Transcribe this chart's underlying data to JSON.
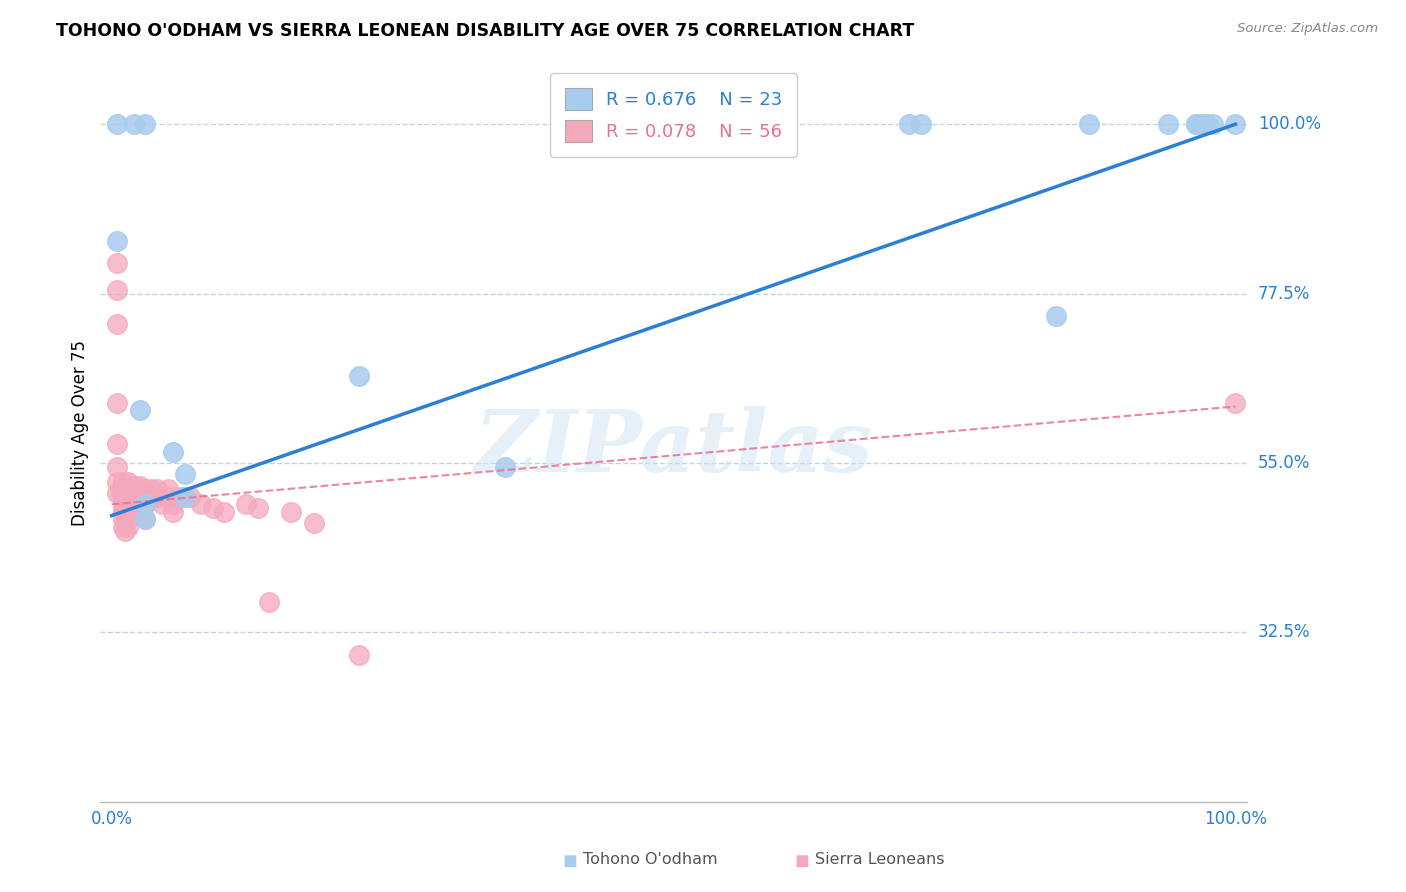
{
  "title": "TOHONO O'ODHAM VS SIERRA LEONEAN DISABILITY AGE OVER 75 CORRELATION CHART",
  "source": "Source: ZipAtlas.com",
  "ylabel": "Disability Age Over 75",
  "ytick_labels": [
    "100.0%",
    "77.5%",
    "55.0%",
    "32.5%"
  ],
  "ytick_values": [
    1.0,
    0.775,
    0.55,
    0.325
  ],
  "legend_blue_R": "R = 0.676",
  "legend_blue_N": "N = 23",
  "legend_pink_R": "R = 0.078",
  "legend_pink_N": "N = 56",
  "legend_blue_label": "Tohono O'odham",
  "legend_pink_label": "Sierra Leoneans",
  "blue_color": "#A8CCEE",
  "pink_color": "#F4A8BC",
  "trendline_blue_color": "#2B7FD4",
  "trendline_pink_color": "#E87090",
  "grid_color": "#C0D4E8",
  "background_color": "#FFFFFF",
  "watermark_text": "ZIPatlas",
  "blue_x": [
    0.005,
    0.02,
    0.03,
    0.005,
    0.025,
    0.055,
    0.065,
    0.065,
    0.03,
    0.03,
    0.22,
    0.35,
    0.71,
    0.72,
    0.84,
    0.87,
    0.94,
    0.965,
    0.965,
    0.97,
    0.975,
    0.98,
    1.0
  ],
  "blue_y": [
    1.0,
    1.0,
    1.0,
    0.845,
    0.62,
    0.565,
    0.535,
    0.505,
    0.495,
    0.475,
    0.665,
    0.545,
    1.0,
    1.0,
    0.745,
    1.0,
    1.0,
    1.0,
    1.0,
    1.0,
    1.0,
    1.0,
    1.0
  ],
  "pink_x": [
    0.005,
    0.005,
    0.005,
    0.005,
    0.005,
    0.005,
    0.005,
    0.005,
    0.008,
    0.01,
    0.01,
    0.01,
    0.01,
    0.01,
    0.01,
    0.01,
    0.01,
    0.012,
    0.015,
    0.015,
    0.015,
    0.015,
    0.015,
    0.02,
    0.02,
    0.02,
    0.022,
    0.025,
    0.025,
    0.025,
    0.03,
    0.03,
    0.03,
    0.03,
    0.035,
    0.035,
    0.04,
    0.04,
    0.045,
    0.05,
    0.05,
    0.055,
    0.055,
    0.06,
    0.065,
    0.07,
    0.08,
    0.09,
    0.1,
    0.12,
    0.13,
    0.14,
    0.16,
    0.18,
    0.22,
    1.0
  ],
  "pink_y": [
    0.815,
    0.78,
    0.735,
    0.63,
    0.575,
    0.545,
    0.525,
    0.51,
    0.51,
    0.525,
    0.515,
    0.51,
    0.5,
    0.49,
    0.485,
    0.475,
    0.465,
    0.46,
    0.525,
    0.515,
    0.49,
    0.475,
    0.465,
    0.52,
    0.51,
    0.495,
    0.485,
    0.52,
    0.495,
    0.48,
    0.515,
    0.51,
    0.495,
    0.475,
    0.515,
    0.505,
    0.515,
    0.505,
    0.495,
    0.515,
    0.505,
    0.495,
    0.485,
    0.505,
    0.505,
    0.505,
    0.495,
    0.49,
    0.485,
    0.495,
    0.49,
    0.365,
    0.485,
    0.47,
    0.295,
    0.63
  ],
  "trendline_blue_x0": 0.0,
  "trendline_blue_y0": 0.48,
  "trendline_blue_x1": 1.0,
  "trendline_blue_y1": 1.0,
  "trendline_pink_x0": 0.0,
  "trendline_pink_y0": 0.495,
  "trendline_pink_x1": 1.0,
  "trendline_pink_y1": 0.625,
  "xlim_min": -0.01,
  "xlim_max": 1.01,
  "ylim_min": 0.1,
  "ylim_max": 1.08
}
